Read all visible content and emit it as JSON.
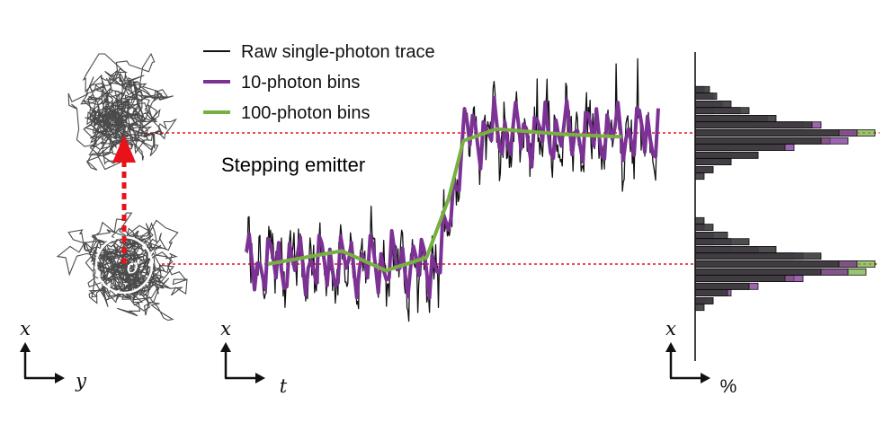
{
  "legend": {
    "raw": "Raw single-photon trace",
    "bins10": "10-photon bins",
    "bins100": "100-photon bins"
  },
  "annotation": {
    "stepping": "Stepping emitter",
    "sigma": "σ"
  },
  "axes": {
    "left": {
      "vertical": "x",
      "horizontal": "y"
    },
    "middle": {
      "vertical": "x",
      "horizontal": "t"
    },
    "right": {
      "vertical": "x",
      "horizontal": "%"
    }
  },
  "colors": {
    "raw": "#111111",
    "bins10": "#7b3294",
    "bins100": "#77b041",
    "stepping": "#e8121a",
    "scatter": "#2a2a2a"
  },
  "icons": {
    "axis_arrows": "corner-arrow-icon",
    "step_arrow": "dashed-up-arrow-icon",
    "sigma_circle": "circle-icon"
  },
  "chart_data": {
    "type": "line",
    "title": "",
    "xlabel": "t",
    "ylabel": "x",
    "levels": {
      "low": 0,
      "high": 1
    },
    "step_fraction": 0.5,
    "bins100_x": [
      0.0,
      0.2,
      0.32,
      0.43,
      0.49,
      0.53,
      0.62,
      0.8,
      0.96
    ],
    "bins100_y": [
      0.0,
      0.1,
      -0.05,
      0.05,
      0.5,
      0.94,
      1.03,
      0.99,
      0.97
    ],
    "histograms": {
      "bins": [
        {
          "x": -0.33,
          "gray": 0.05,
          "purple": 0.0,
          "green": 0.0
        },
        {
          "x": -0.28,
          "gray": 0.1,
          "purple": 0.1,
          "green": 0.05
        },
        {
          "x": -0.22,
          "gray": 0.18,
          "purple": 0.2,
          "green": 0.15
        },
        {
          "x": -0.17,
          "gray": 0.3,
          "purple": 0.35,
          "green": 0.3
        },
        {
          "x": -0.11,
          "gray": 0.5,
          "purple": 0.6,
          "green": 0.55
        },
        {
          "x": -0.06,
          "gray": 0.7,
          "purple": 0.85,
          "green": 0.95
        },
        {
          "x": 0.0,
          "gray": 0.8,
          "purple": 0.9,
          "green": 1.0
        },
        {
          "x": 0.06,
          "gray": 0.7,
          "purple": 0.6,
          "green": 0.55
        },
        {
          "x": 0.11,
          "gray": 0.45,
          "purple": 0.35,
          "green": 0.2
        },
        {
          "x": 0.17,
          "gray": 0.3,
          "purple": 0.2,
          "green": 0.1
        },
        {
          "x": 0.22,
          "gray": 0.18,
          "purple": 0.1,
          "green": 0.0
        },
        {
          "x": 0.28,
          "gray": 0.1,
          "purple": 0.05,
          "green": 0.0
        },
        {
          "x": 0.33,
          "gray": 0.05,
          "purple": 0.0,
          "green": 0.0
        },
        {
          "x": 0.67,
          "gray": 0.05,
          "purple": 0.0,
          "green": 0.0
        },
        {
          "x": 0.72,
          "gray": 0.1,
          "purple": 0.1,
          "green": 0.0
        },
        {
          "x": 0.78,
          "gray": 0.2,
          "purple": 0.2,
          "green": 0.05
        },
        {
          "x": 0.83,
          "gray": 0.35,
          "purple": 0.35,
          "green": 0.2
        },
        {
          "x": 0.89,
          "gray": 0.5,
          "purple": 0.55,
          "green": 0.45
        },
        {
          "x": 0.94,
          "gray": 0.7,
          "purple": 0.85,
          "green": 0.75
        },
        {
          "x": 1.0,
          "gray": 0.8,
          "purple": 0.9,
          "green": 1.0
        },
        {
          "x": 1.06,
          "gray": 0.65,
          "purple": 0.7,
          "green": 0.6
        },
        {
          "x": 1.11,
          "gray": 0.45,
          "purple": 0.4,
          "green": 0.3
        },
        {
          "x": 1.17,
          "gray": 0.3,
          "purple": 0.25,
          "green": 0.1
        },
        {
          "x": 1.22,
          "gray": 0.2,
          "purple": 0.15,
          "green": 0.0
        },
        {
          "x": 1.28,
          "gray": 0.12,
          "purple": 0.1,
          "green": 0.0
        },
        {
          "x": 1.33,
          "gray": 0.08,
          "purple": 0.05,
          "green": 0.0
        }
      ]
    }
  }
}
